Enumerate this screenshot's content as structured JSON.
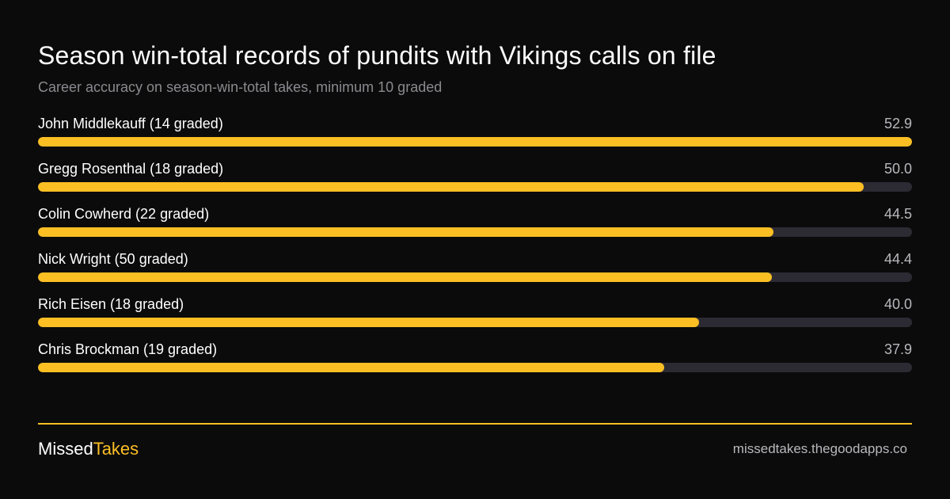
{
  "colors": {
    "background": "#0b0b0b",
    "accent": "#fbbf24",
    "track": "#2c2a33",
    "muted_text": "#8a8a8f"
  },
  "chart_data": {
    "type": "bar",
    "orientation": "horizontal",
    "title": "Season win-total records of pundits with Vikings calls on file",
    "subtitle": "Career accuracy on season-win-total takes, minimum 10 graded",
    "max_value": 52.9,
    "rows": [
      {
        "label": "John Middlekauff  (14 graded)",
        "value": 52.9,
        "value_label": "52.9"
      },
      {
        "label": "Gregg Rosenthal (18 graded)",
        "value": 50.0,
        "value_label": "50.0"
      },
      {
        "label": "Colin Cowherd (22 graded)",
        "value": 44.5,
        "value_label": "44.5"
      },
      {
        "label": "Nick Wright (50 graded)",
        "value": 44.4,
        "value_label": "44.4"
      },
      {
        "label": "Rich Eisen (18 graded)",
        "value": 40.0,
        "value_label": "40.0"
      },
      {
        "label": "Chris Brockman (19 graded)",
        "value": 37.9,
        "value_label": "37.9"
      }
    ]
  },
  "footer": {
    "brand_first": "Missed",
    "brand_second": "Takes",
    "site": "missedtakes.thegoodapps.co"
  }
}
